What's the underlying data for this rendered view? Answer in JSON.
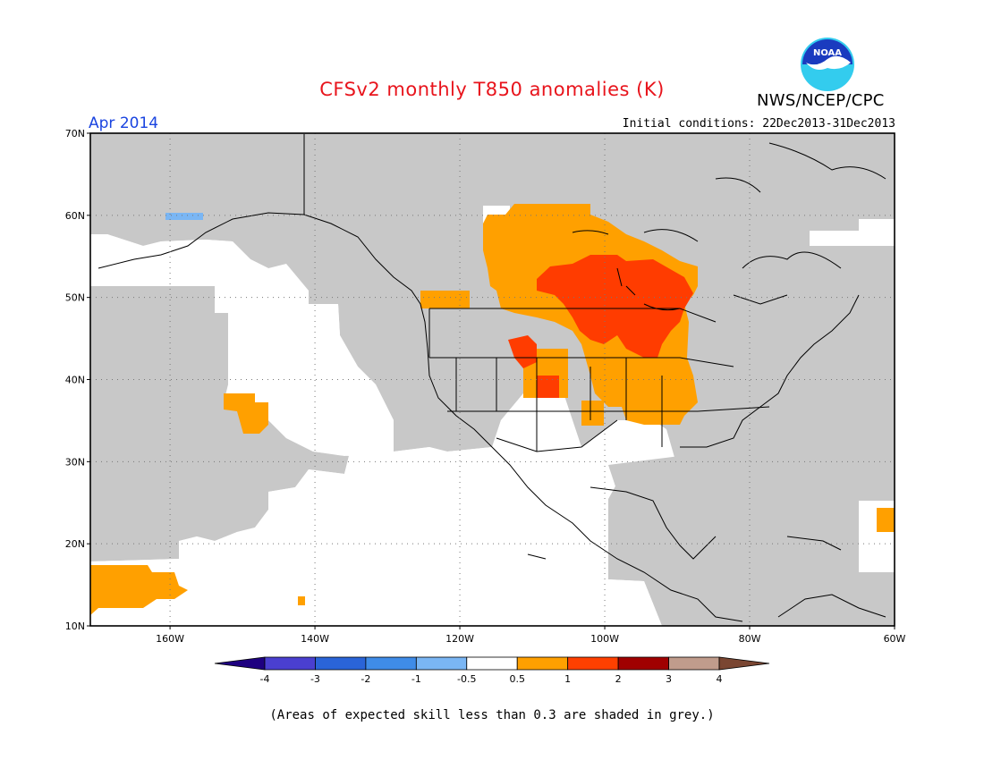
{
  "title": "CFSv2 monthly T850 anomalies (K)",
  "agency": "NWS/NCEP/CPC",
  "logo_text": "NOAA",
  "period": "Apr 2014",
  "initial_conditions": "Initial conditions: 22Dec2013-31Dec2013",
  "note": "(Areas of expected skill less than 0.3 are shaded in grey.)",
  "map": {
    "lon_range": [
      -171,
      -60
    ],
    "lat_range": [
      10,
      70
    ],
    "lat_labels": [
      "10N",
      "20N",
      "30N",
      "40N",
      "50N",
      "60N",
      "70N"
    ],
    "lon_labels": [
      "160W",
      "140W",
      "120W",
      "100W",
      "80W",
      "60W"
    ],
    "grid": "dotted",
    "land_color": "#c8c8c8",
    "ocean_color": "#ffffff"
  },
  "legend": {
    "labels": [
      "-4",
      "-3",
      "-2",
      "-1",
      "-0.5",
      "0.5",
      "1",
      "2",
      "3",
      "4"
    ],
    "colors": [
      "#1e0080",
      "#4a3fd0",
      "#2a64d8",
      "#3f8ce8",
      "#7ab6f4",
      "#ffffff",
      "#ffa000",
      "#ff4000",
      "#a00000",
      "#c09c8c",
      "#7a4632"
    ]
  }
}
